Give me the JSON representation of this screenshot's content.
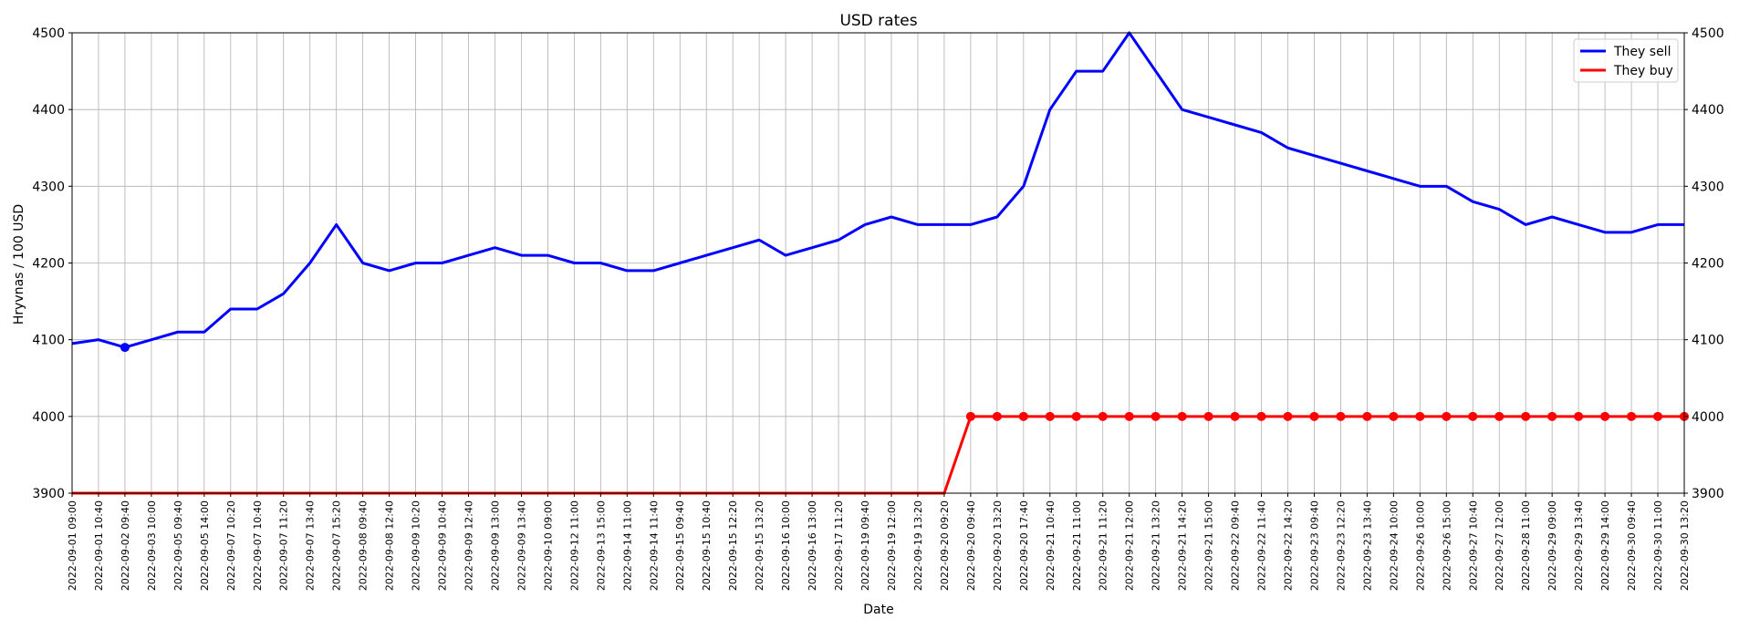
{
  "chart_data": {
    "type": "line",
    "title": "USD rates",
    "xlabel": "Date",
    "ylabel": "Hryvnas / 100 USD",
    "ylim": [
      3900,
      4500
    ],
    "yticks": [
      "3900",
      "4000",
      "4100",
      "4200",
      "4300",
      "4400",
      "4500"
    ],
    "grid": true,
    "legend_position": "top-right",
    "categories": [
      "2022-09-01 09:00",
      "2022-09-01 10:40",
      "2022-09-02 09:40",
      "2022-09-03 10:00",
      "2022-09-05 09:40",
      "2022-09-05 14:00",
      "2022-09-07 10:20",
      "2022-09-07 10:40",
      "2022-09-07 11:20",
      "2022-09-07 13:40",
      "2022-09-07 15:20",
      "2022-09-08 09:40",
      "2022-09-08 12:40",
      "2022-09-09 10:20",
      "2022-09-09 10:40",
      "2022-09-09 12:40",
      "2022-09-09 13:00",
      "2022-09-09 13:40",
      "2022-09-10 09:00",
      "2022-09-12 11:00",
      "2022-09-13 15:00",
      "2022-09-14 11:00",
      "2022-09-14 11:40",
      "2022-09-15 09:40",
      "2022-09-15 10:40",
      "2022-09-15 12:20",
      "2022-09-15 13:20",
      "2022-09-16 10:00",
      "2022-09-16 13:00",
      "2022-09-17 11:20",
      "2022-09-19 09:40",
      "2022-09-19 12:00",
      "2022-09-19 13:20",
      "2022-09-20 09:20",
      "2022-09-20 09:40",
      "2022-09-20 13:20",
      "2022-09-20 17:40",
      "2022-09-21 10:40",
      "2022-09-21 11:00",
      "2022-09-21 11:20",
      "2022-09-21 12:00",
      "2022-09-21 13:20",
      "2022-09-21 14:20",
      "2022-09-21 15:00",
      "2022-09-22 09:40",
      "2022-09-22 11:40",
      "2022-09-22 14:20",
      "2022-09-23 09:40",
      "2022-09-23 12:20",
      "2022-09-23 13:40",
      "2022-09-24 10:00",
      "2022-09-26 10:00",
      "2022-09-26 15:00",
      "2022-09-27 10:40",
      "2022-09-27 12:00",
      "2022-09-28 11:00",
      "2022-09-29 09:00",
      "2022-09-29 13:40",
      "2022-09-29 14:00",
      "2022-09-30 09:40",
      "2022-09-30 11:00",
      "2022-09-30 13:20"
    ],
    "series": [
      {
        "name": "They sell",
        "color": "#0000ff",
        "values": [
          4095,
          4100,
          4090,
          4100,
          4110,
          4110,
          4140,
          4140,
          4160,
          4200,
          4250,
          4200,
          4190,
          4200,
          4200,
          4210,
          4220,
          4210,
          4210,
          4200,
          4200,
          4190,
          4190,
          4200,
          4210,
          4220,
          4230,
          4210,
          4220,
          4230,
          4250,
          4260,
          4250,
          4250,
          4250,
          4260,
          4300,
          4400,
          4450,
          4450,
          4500,
          4450,
          4400,
          4390,
          4380,
          4370,
          4350,
          4340,
          4330,
          4320,
          4310,
          4300,
          4300,
          4280,
          4270,
          4250,
          4260,
          4250,
          4240,
          4240,
          4250,
          4250
        ],
        "markers": [
          2
        ]
      },
      {
        "name": "They buy",
        "color": "#ff0000",
        "values": [
          3900,
          3900,
          3900,
          3900,
          3900,
          3900,
          3900,
          3900,
          3900,
          3900,
          3900,
          3900,
          3900,
          3900,
          3900,
          3900,
          3900,
          3900,
          3900,
          3900,
          3900,
          3900,
          3900,
          3900,
          3900,
          3900,
          3900,
          3900,
          3900,
          3900,
          3900,
          3900,
          3900,
          3900,
          4000,
          4000,
          4000,
          4000,
          4000,
          4000,
          4000,
          4000,
          4000,
          4000,
          4000,
          4000,
          4000,
          4000,
          4000,
          4000,
          4000,
          4000,
          4000,
          4000,
          4000,
          4000,
          4000,
          4000,
          4000,
          4000,
          4000,
          4000
        ],
        "markers": [
          34,
          35,
          36,
          37,
          38,
          39,
          40,
          41,
          42,
          43,
          44,
          45,
          46,
          47,
          48,
          49,
          50,
          51,
          52,
          53,
          54,
          55,
          56,
          57,
          58,
          59,
          60,
          61
        ]
      }
    ]
  }
}
